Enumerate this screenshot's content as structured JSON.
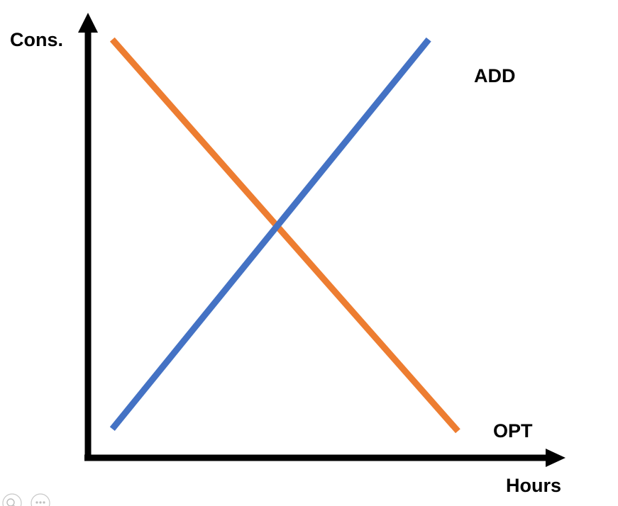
{
  "chart_data": {
    "type": "line",
    "xlabel": "Hours",
    "ylabel": "Cons.",
    "grid": false,
    "ticks": false,
    "xlim": [
      0,
      10
    ],
    "ylim": [
      0,
      10
    ],
    "series": [
      {
        "name": "OPT",
        "color": "#ED7D31",
        "x": [
          0.5,
          7.6
        ],
        "y": [
          9.4,
          0.6
        ]
      },
      {
        "name": "ADD",
        "color": "#4472C4",
        "x": [
          0.5,
          7.0
        ],
        "y": [
          0.65,
          9.4
        ]
      }
    ]
  },
  "viewer_controls": {
    "zoom_icon": "magnifier-icon",
    "more_icon": "ellipsis-icon"
  }
}
